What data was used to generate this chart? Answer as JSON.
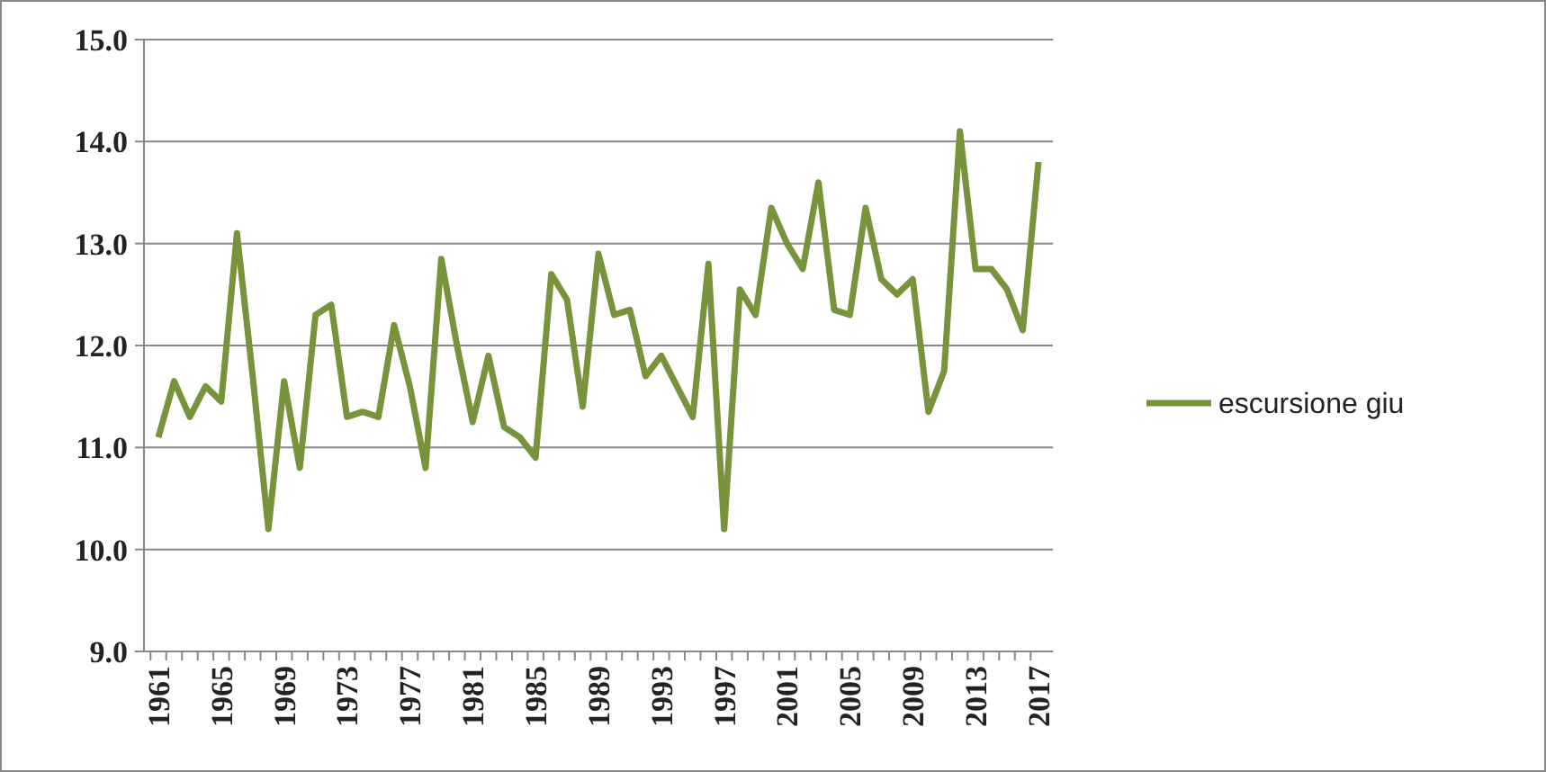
{
  "chart_data": {
    "type": "line",
    "categories": [
      "1961",
      null,
      null,
      null,
      "1965",
      null,
      null,
      null,
      "1969",
      null,
      null,
      null,
      "1973",
      null,
      null,
      null,
      "1977",
      null,
      null,
      null,
      "1981",
      null,
      null,
      null,
      "1985",
      null,
      null,
      null,
      "1989",
      null,
      null,
      null,
      "1993",
      null,
      null,
      null,
      "1997",
      null,
      null,
      null,
      "2001",
      null,
      null,
      null,
      "2005",
      null,
      null,
      null,
      "2009",
      null,
      null,
      null,
      "2013",
      null,
      null,
      null,
      "2017"
    ],
    "series": [
      {
        "name": "escursione giu",
        "color": "#77933c",
        "values": [
          11.1,
          11.65,
          11.3,
          11.6,
          11.45,
          13.1,
          11.7,
          10.2,
          11.65,
          10.8,
          12.3,
          12.4,
          11.3,
          11.35,
          11.3,
          12.2,
          11.6,
          10.8,
          12.85,
          12.0,
          11.25,
          11.9,
          11.2,
          11.1,
          10.9,
          12.7,
          12.45,
          11.4,
          12.9,
          12.3,
          12.35,
          11.7,
          11.9,
          11.6,
          11.3,
          12.8,
          10.2,
          12.55,
          12.3,
          13.35,
          13.0,
          12.75,
          13.6,
          12.35,
          12.3,
          13.35,
          12.65,
          12.5,
          12.65,
          11.35,
          11.75,
          14.1,
          12.75,
          12.75,
          12.55,
          12.15,
          13.8
        ]
      }
    ],
    "ylim": [
      9,
      15
    ],
    "yticks": [
      {
        "value": 9,
        "label": "9.0"
      },
      {
        "value": 10,
        "label": "10.0"
      },
      {
        "value": 11,
        "label": "11.0"
      },
      {
        "value": 12,
        "label": "12.0"
      },
      {
        "value": 13,
        "label": "13.0"
      },
      {
        "value": 14,
        "label": "14.0"
      },
      {
        "value": 15,
        "label": "15.0"
      }
    ],
    "grid": "y",
    "legend": "right",
    "marker": "none",
    "line_style": "solid"
  }
}
